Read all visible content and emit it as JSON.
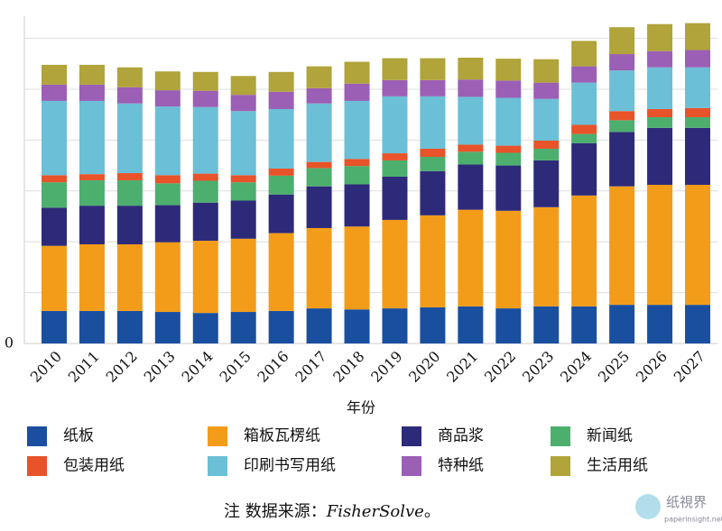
{
  "chart_data": {
    "type": "stacked_bar",
    "categories": [
      "2010",
      "2011",
      "2012",
      "2013",
      "2014",
      "2015",
      "2016",
      "2017",
      "2018",
      "2019",
      "2020",
      "2021",
      "2022",
      "2023",
      "2024",
      "2025",
      "2026",
      "2027"
    ],
    "series": [
      {
        "name": "纸板",
        "color": "#1a4fa0",
        "values": [
          0.64,
          0.64,
          0.64,
          0.62,
          0.6,
          0.62,
          0.64,
          0.69,
          0.67,
          0.69,
          0.71,
          0.73,
          0.69,
          0.73,
          0.73,
          0.76,
          0.76,
          0.76
        ]
      },
      {
        "name": "箱板瓦楞纸",
        "color": "#f39c1a",
        "values": [
          1.28,
          1.31,
          1.31,
          1.37,
          1.42,
          1.44,
          1.53,
          1.58,
          1.63,
          1.74,
          1.81,
          1.9,
          1.92,
          1.95,
          2.18,
          2.33,
          2.36,
          2.36
        ]
      },
      {
        "name": "商品浆",
        "color": "#2e2a7a",
        "values": [
          0.75,
          0.76,
          0.76,
          0.73,
          0.75,
          0.75,
          0.76,
          0.82,
          0.83,
          0.85,
          0.87,
          0.89,
          0.89,
          0.92,
          1.03,
          1.07,
          1.12,
          1.12
        ]
      },
      {
        "name": "新闻纸",
        "color": "#4caf6e",
        "values": [
          0.5,
          0.5,
          0.5,
          0.43,
          0.43,
          0.36,
          0.37,
          0.36,
          0.36,
          0.32,
          0.28,
          0.25,
          0.25,
          0.23,
          0.18,
          0.23,
          0.21,
          0.21
        ]
      },
      {
        "name": "包装用纸",
        "color": "#e8532a",
        "values": [
          0.14,
          0.12,
          0.14,
          0.16,
          0.14,
          0.14,
          0.14,
          0.12,
          0.14,
          0.14,
          0.16,
          0.14,
          0.14,
          0.16,
          0.18,
          0.18,
          0.16,
          0.18
        ]
      },
      {
        "name": "印刷书写用纸",
        "color": "#6bbfd6",
        "values": [
          1.46,
          1.44,
          1.37,
          1.35,
          1.31,
          1.26,
          1.17,
          1.15,
          1.14,
          1.12,
          1.03,
          0.94,
          0.94,
          0.82,
          0.83,
          0.8,
          0.82,
          0.8
        ]
      },
      {
        "name": "特种纸",
        "color": "#9b5fb5",
        "values": [
          0.32,
          0.32,
          0.32,
          0.32,
          0.32,
          0.32,
          0.34,
          0.3,
          0.34,
          0.32,
          0.32,
          0.34,
          0.34,
          0.32,
          0.32,
          0.32,
          0.32,
          0.34
        ]
      },
      {
        "name": "生活用纸",
        "color": "#b0a43a",
        "values": [
          0.39,
          0.39,
          0.39,
          0.37,
          0.37,
          0.37,
          0.39,
          0.43,
          0.43,
          0.43,
          0.43,
          0.43,
          0.43,
          0.46,
          0.5,
          0.53,
          0.53,
          0.53
        ]
      }
    ],
    "xlabel": "年份",
    "ylim": [
      0,
      6.4
    ],
    "yticks": [
      0
    ],
    "gridlines": [
      1,
      2,
      3,
      4,
      5,
      6
    ],
    "grid": true,
    "note": [
      "注  数据来源：",
      "FisherSolve",
      "。"
    ],
    "watermark": [
      "纸視界",
      "paperinsight.net"
    ]
  }
}
